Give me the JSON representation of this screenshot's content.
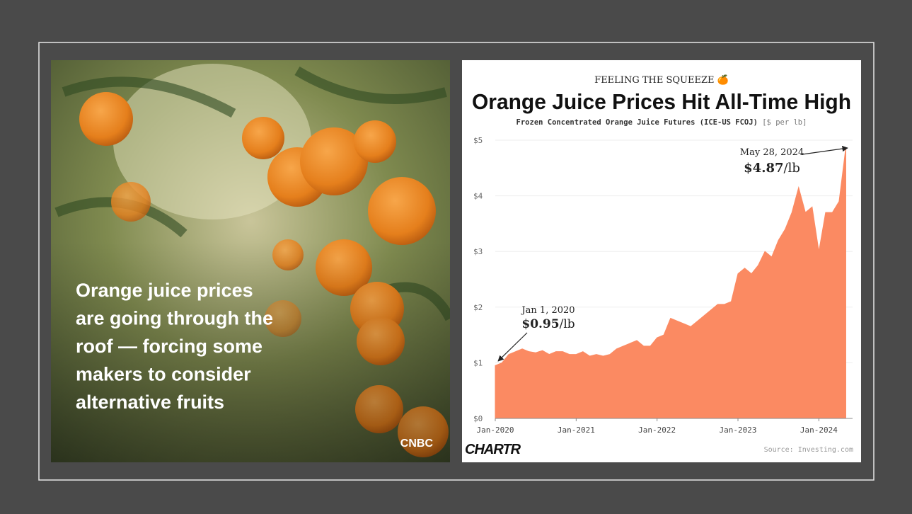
{
  "photo": {
    "caption_lines": [
      "Orange juice prices",
      "are going through the",
      "roof — forcing some",
      "makers to consider",
      "alternative fruits"
    ],
    "brand": "CNBC"
  },
  "chart_data": {
    "type": "area",
    "kicker": "FEELING THE SQUEEZE 🍊",
    "title": "Orange Juice Prices Hit All-Time High",
    "subtitle": "Frozen Concentrated Orange Juice Futures (ICE-US FCOJ)",
    "unit_note": "[$ per lb]",
    "color": "#fb8a62",
    "grid": true,
    "x": [
      "2020-01",
      "2020-02",
      "2020-03",
      "2020-04",
      "2020-05",
      "2020-06",
      "2020-07",
      "2020-08",
      "2020-09",
      "2020-10",
      "2020-11",
      "2020-12",
      "2021-01",
      "2021-02",
      "2021-03",
      "2021-04",
      "2021-05",
      "2021-06",
      "2021-07",
      "2021-08",
      "2021-09",
      "2021-10",
      "2021-11",
      "2021-12",
      "2022-01",
      "2022-02",
      "2022-03",
      "2022-04",
      "2022-05",
      "2022-06",
      "2022-07",
      "2022-08",
      "2022-09",
      "2022-10",
      "2022-11",
      "2022-12",
      "2023-01",
      "2023-02",
      "2023-03",
      "2023-04",
      "2023-05",
      "2023-06",
      "2023-07",
      "2023-08",
      "2023-09",
      "2023-10",
      "2023-11",
      "2023-12",
      "2024-01",
      "2024-02",
      "2024-03",
      "2024-04",
      "2024-05"
    ],
    "values": [
      0.95,
      1.0,
      1.15,
      1.2,
      1.25,
      1.2,
      1.18,
      1.22,
      1.15,
      1.2,
      1.2,
      1.15,
      1.15,
      1.2,
      1.12,
      1.15,
      1.12,
      1.15,
      1.25,
      1.3,
      1.35,
      1.4,
      1.3,
      1.3,
      1.45,
      1.5,
      1.8,
      1.75,
      1.7,
      1.65,
      1.75,
      1.85,
      1.95,
      2.05,
      2.05,
      2.1,
      2.6,
      2.7,
      2.6,
      2.75,
      3.0,
      2.9,
      3.2,
      3.4,
      3.7,
      4.15,
      3.7,
      3.8,
      3.0,
      3.7,
      3.7,
      3.9,
      4.87
    ],
    "xlim": [
      "2020-01",
      "2024-06"
    ],
    "xticks": [
      {
        "value": "2020-01",
        "label": "Jan-2020"
      },
      {
        "value": "2021-01",
        "label": "Jan-2021"
      },
      {
        "value": "2022-01",
        "label": "Jan-2022"
      },
      {
        "value": "2023-01",
        "label": "Jan-2023"
      },
      {
        "value": "2024-01",
        "label": "Jan-2024"
      }
    ],
    "ylim": [
      0,
      5
    ],
    "yticks": [
      {
        "value": 0,
        "label": "$0"
      },
      {
        "value": 1,
        "label": "$1"
      },
      {
        "value": 2,
        "label": "$2"
      },
      {
        "value": 3,
        "label": "$3"
      },
      {
        "value": 4,
        "label": "$4"
      },
      {
        "value": 5,
        "label": "$5"
      }
    ],
    "annotations": [
      {
        "date": "Jan 1, 2020",
        "price": "$0.95",
        "unit": "/lb"
      },
      {
        "date": "May 28, 2024",
        "price": "$4.87",
        "unit": "/lb"
      }
    ],
    "brand": "CHARTR",
    "source": "Source: Investing.com"
  }
}
